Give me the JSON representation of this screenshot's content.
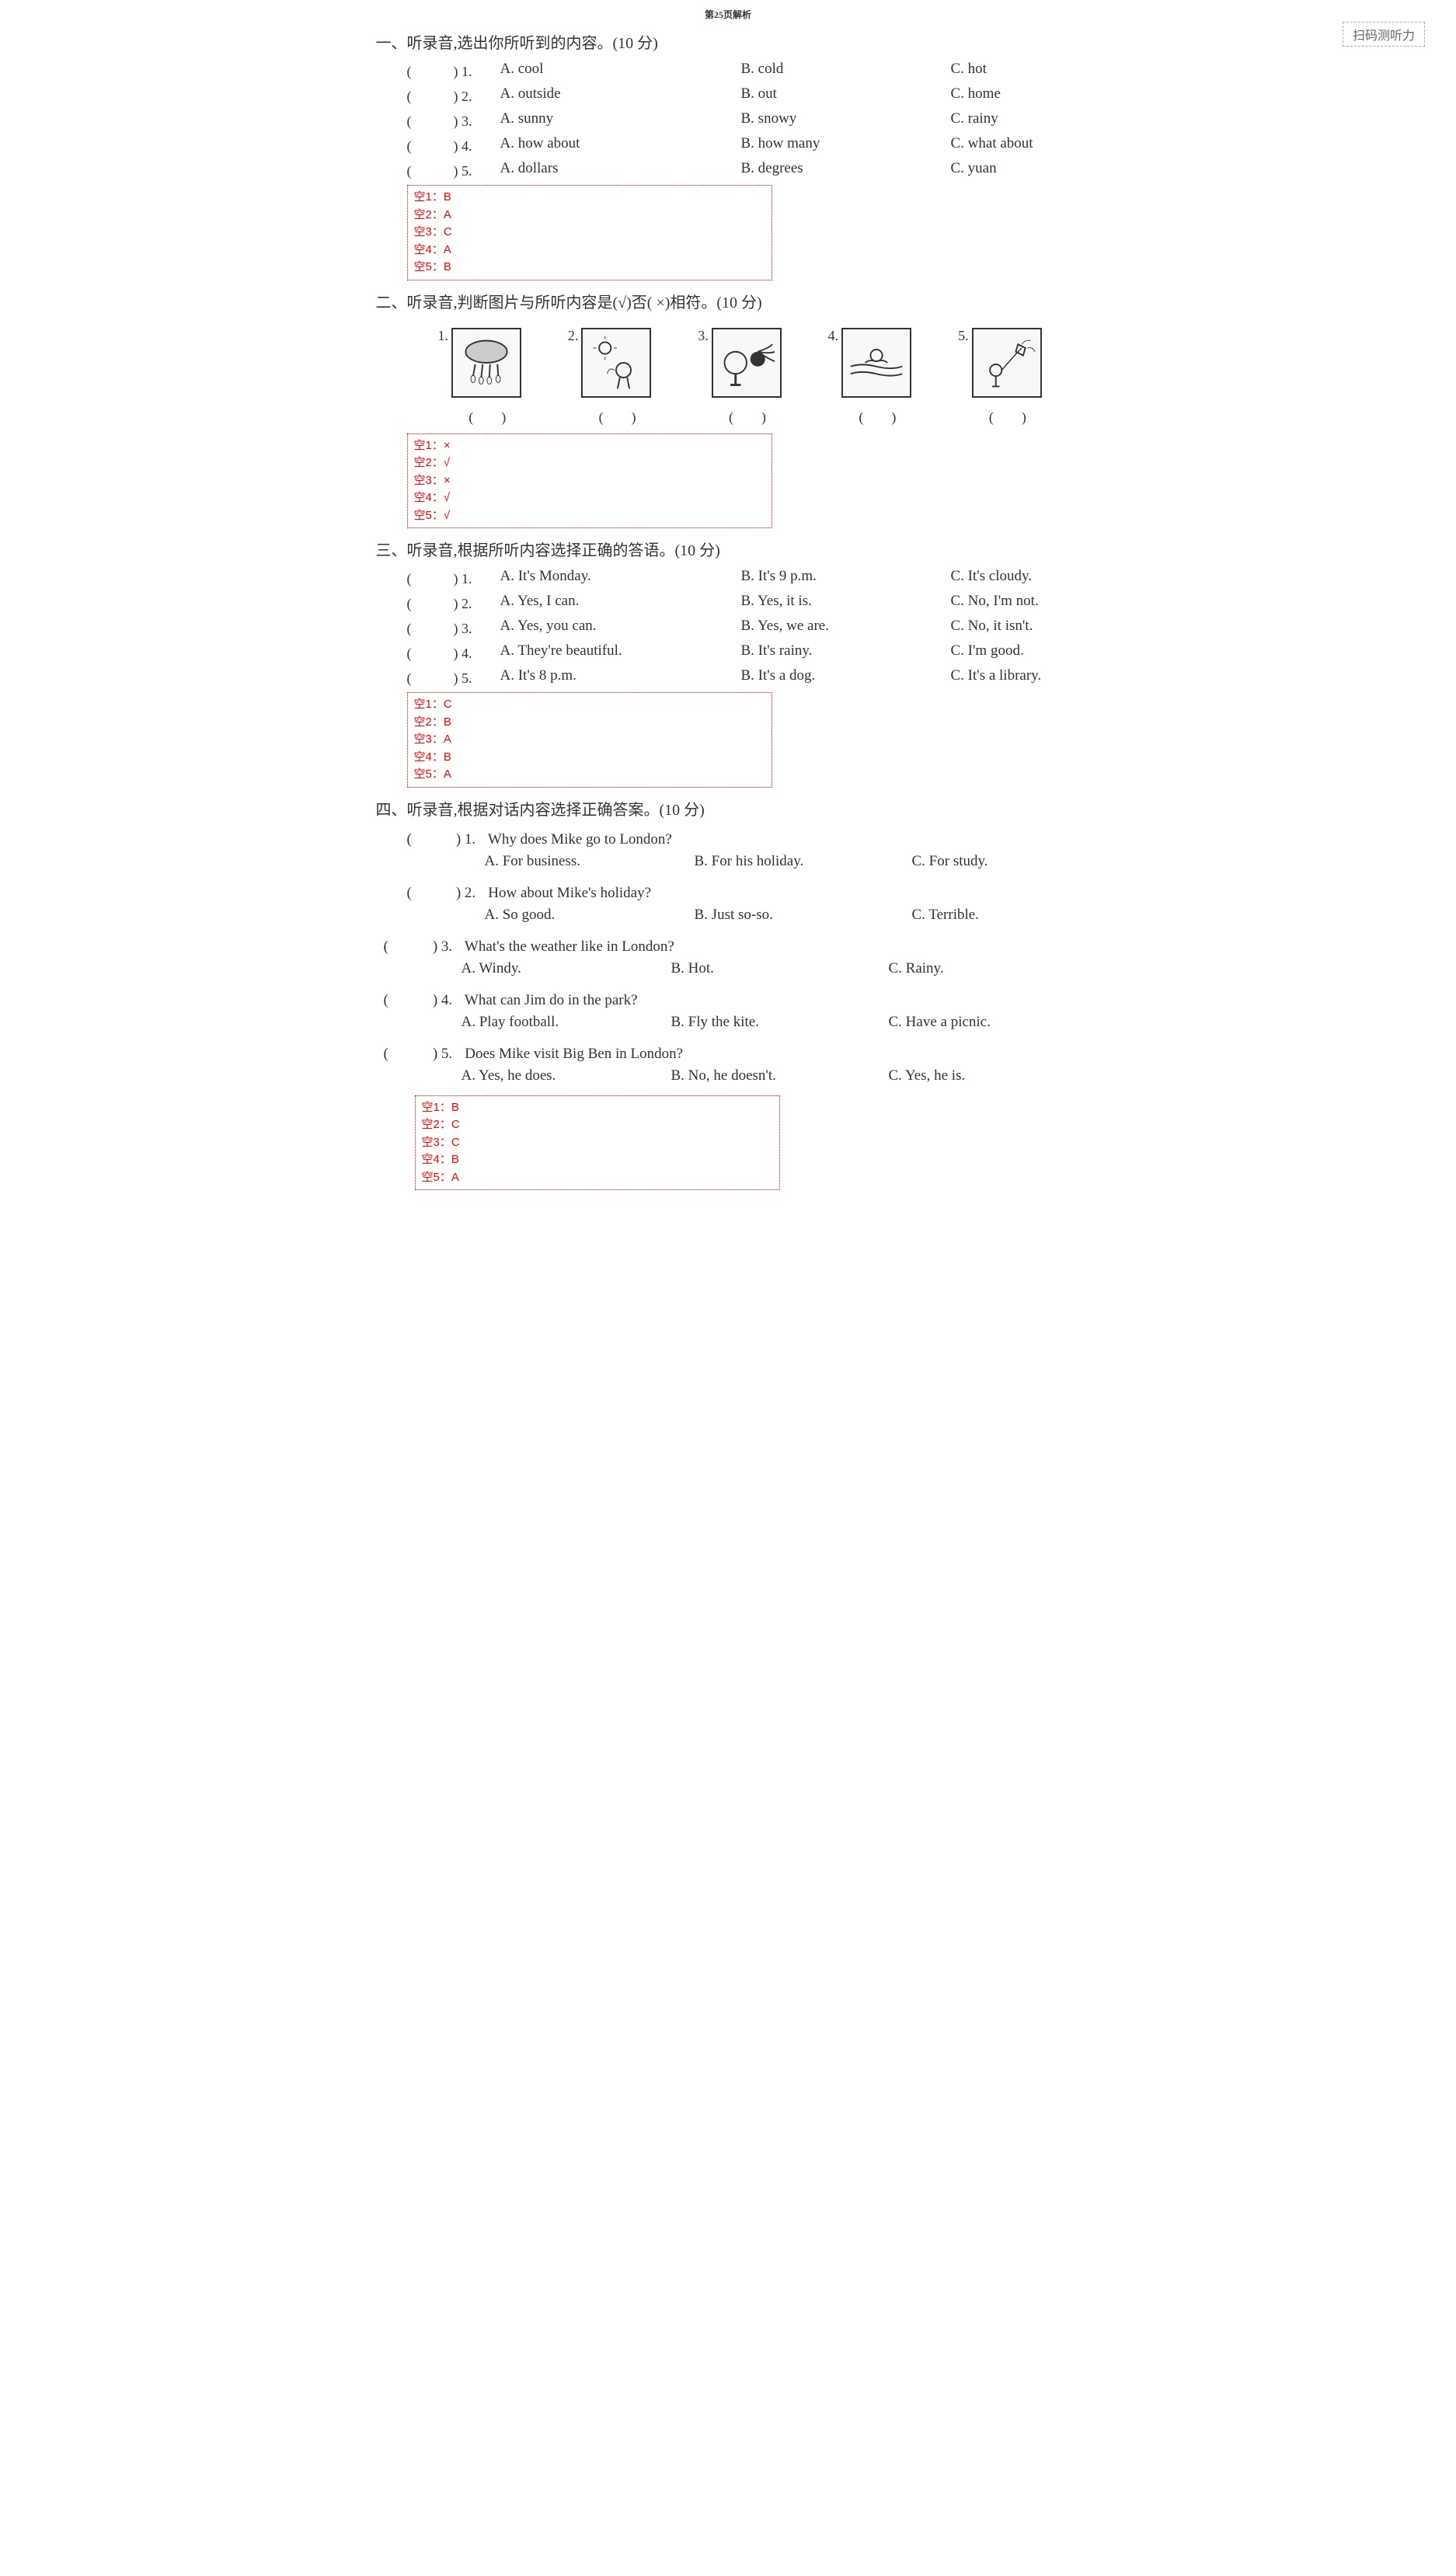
{
  "header": {
    "pageLabel": "第25页解析",
    "scanText": "扫码测听力"
  },
  "section1": {
    "title": "一、听录音,选出你所听到的内容。(10 分)",
    "questions": [
      {
        "num": "1",
        "a": "A. cool",
        "b": "B. cold",
        "c": "C. hot"
      },
      {
        "num": "2",
        "a": "A. outside",
        "b": "B. out",
        "c": "C. home"
      },
      {
        "num": "3",
        "a": "A. sunny",
        "b": "B. snowy",
        "c": "C. rainy"
      },
      {
        "num": "4",
        "a": "A. how about",
        "b": "B. how many",
        "c": "C. what about"
      },
      {
        "num": "5",
        "a": "A. dollars",
        "b": "B. degrees",
        "c": "C. yuan"
      }
    ],
    "answers": [
      "空1：B",
      "空2：A",
      "空3：C",
      "空4：A",
      "空5：B"
    ]
  },
  "section2": {
    "title": "二、听录音,判断图片与所听内容是(√)否( ×)相符。(10 分)",
    "images": [
      "1.",
      "2.",
      "3.",
      "4.",
      "5."
    ],
    "answers": [
      "空1：×",
      "空2：√",
      "空3：×",
      "空4：√",
      "空5：√"
    ]
  },
  "section3": {
    "title": "三、听录音,根据所听内容选择正确的答语。(10 分)",
    "questions": [
      {
        "num": "1",
        "a": "A. It's Monday.",
        "b": "B. It's 9 p.m.",
        "c": "C. It's cloudy."
      },
      {
        "num": "2",
        "a": "A. Yes, I can.",
        "b": "B. Yes, it is.",
        "c": "C. No, I'm not."
      },
      {
        "num": "3",
        "a": "A. Yes, you can.",
        "b": "B. Yes, we are.",
        "c": "C. No, it isn't."
      },
      {
        "num": "4",
        "a": "A. They're beautiful.",
        "b": "B. It's rainy.",
        "c": "C. I'm good."
      },
      {
        "num": "5",
        "a": "A. It's 8 p.m.",
        "b": "B. It's a dog.",
        "c": "C. It's a library."
      }
    ],
    "answers": [
      "空1：C",
      "空2：B",
      "空3：A",
      "空4：B",
      "空5：A"
    ]
  },
  "section4": {
    "title": "四、听录音,根据对话内容选择正确答案。(10 分)",
    "questions": [
      {
        "num": "1",
        "q": "Why does Mike go to London?",
        "a": "A. For business.",
        "b": "B. For his holiday.",
        "c": "C. For study.",
        "shift": false
      },
      {
        "num": "2",
        "q": "How about Mike's holiday?",
        "a": "A. So good.",
        "b": "B. Just so-so.",
        "c": "C. Terrible.",
        "shift": false
      },
      {
        "num": "3",
        "q": "What's the weather like in London?",
        "a": "A. Windy.",
        "b": "B. Hot.",
        "c": "C. Rainy.",
        "shift": true
      },
      {
        "num": "4",
        "q": "What can Jim do in the park?",
        "a": "A. Play football.",
        "b": "B. Fly the kite.",
        "c": "C. Have a picnic.",
        "shift": true
      },
      {
        "num": "5",
        "q": "Does Mike visit Big Ben in London?",
        "a": "A. Yes, he does.",
        "b": "B. No, he doesn't.",
        "c": "C. Yes, he is.",
        "shift": true
      }
    ],
    "answers": [
      "空1：B",
      "空2：C",
      "空3：C",
      "空4：B",
      "空5：A"
    ]
  },
  "parenText": "(　　　)"
}
